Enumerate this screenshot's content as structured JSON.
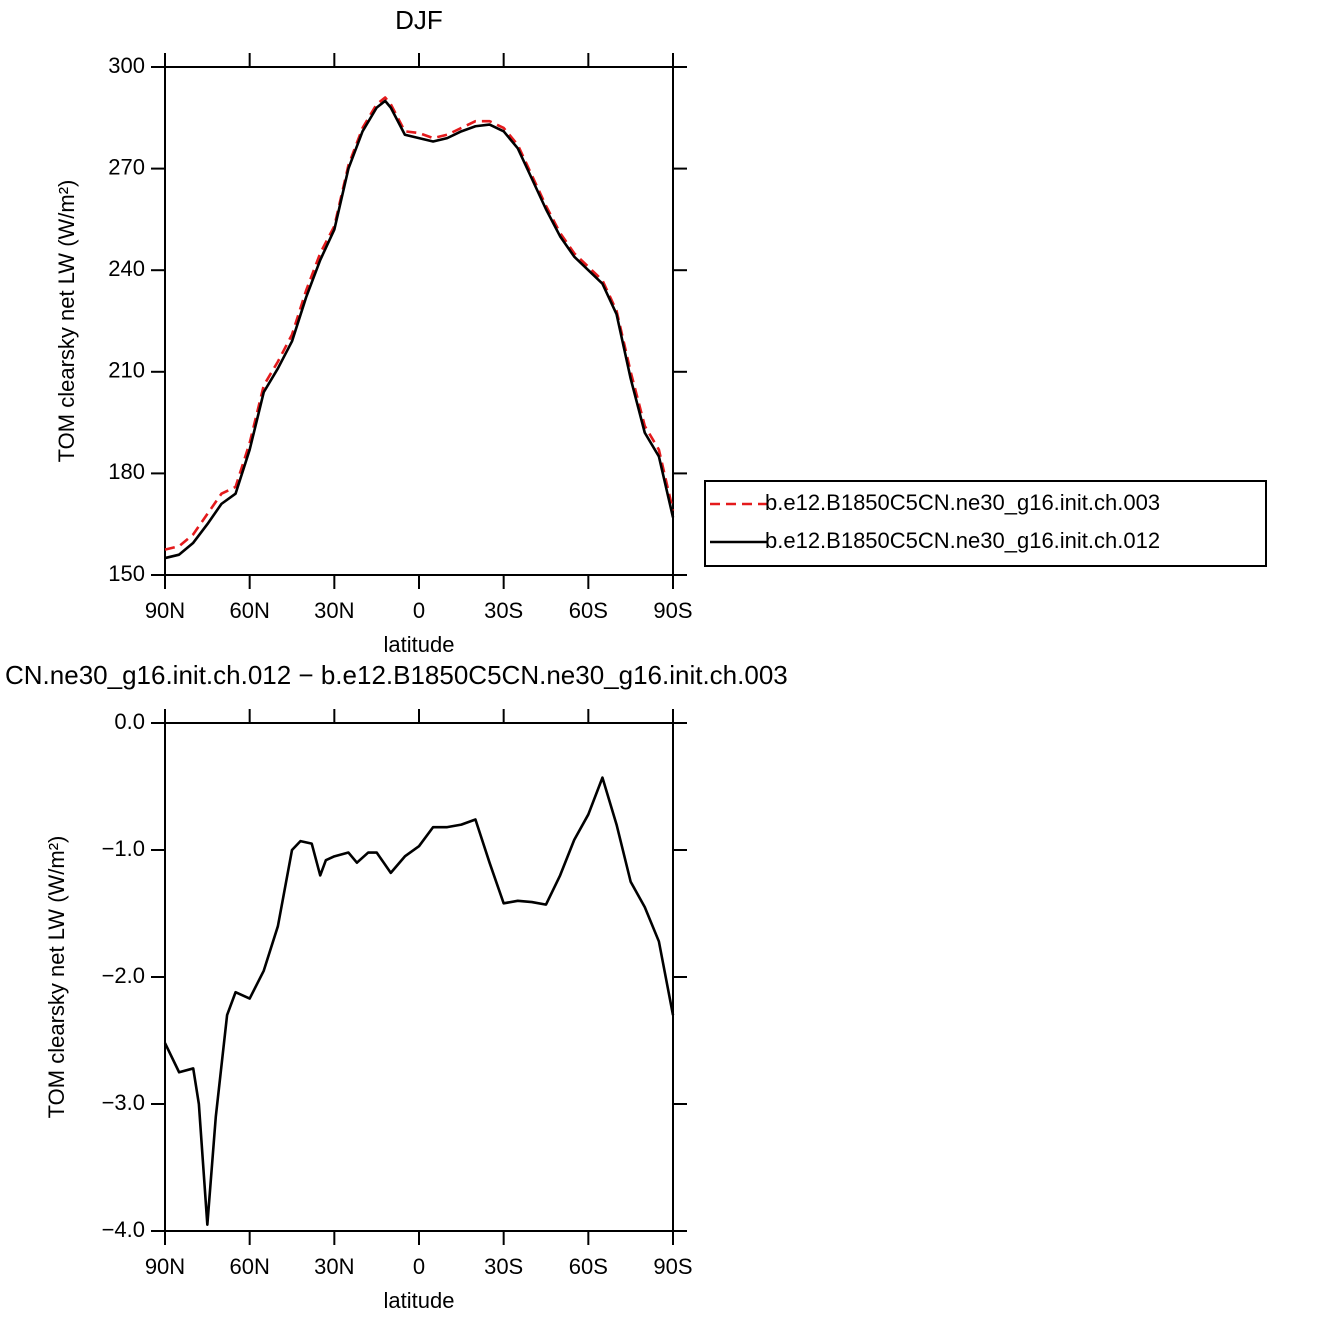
{
  "chart_data": [
    {
      "type": "line",
      "title": "DJF",
      "xlabel": "latitude",
      "ylabel": "TOM clearsky net LW (W/m²)",
      "x": [
        90,
        85,
        80,
        75,
        70,
        65,
        60,
        55,
        50,
        45,
        40,
        35,
        30,
        25,
        20,
        15,
        12,
        10,
        5,
        0,
        -5,
        -10,
        -15,
        -20,
        -25,
        -30,
        -35,
        -40,
        -45,
        -50,
        -55,
        -60,
        -65,
        -70,
        -75,
        -80,
        -85,
        -90
      ],
      "xlim": [
        90,
        -90
      ],
      "xticks": [
        {
          "value": 90,
          "label": "90N"
        },
        {
          "value": 60,
          "label": "60N"
        },
        {
          "value": 30,
          "label": "30N"
        },
        0,
        {
          "value": -30,
          "label": "30S"
        },
        {
          "value": -60,
          "label": "60S"
        },
        {
          "value": -90,
          "label": "90S"
        }
      ],
      "ylim": [
        150,
        300
      ],
      "yticks": [
        150,
        180,
        210,
        240,
        270,
        300
      ],
      "legend": "right",
      "series": [
        {
          "name": "b.e12.B1850C5CN.ne30_g16.init.ch.003",
          "color": "#e41a1c",
          "linestyle": "dashed",
          "values": [
            157.5,
            158.5,
            162,
            168,
            174,
            176,
            189,
            206,
            213,
            221,
            234,
            245,
            253,
            271,
            282,
            289,
            291,
            289,
            281,
            280.5,
            279,
            280,
            282,
            284,
            284,
            282,
            277,
            268,
            259,
            251,
            245,
            241,
            237,
            228,
            210,
            194,
            187,
            169
          ]
        },
        {
          "name": "b.e12.B1850C5CN.ne30_g16.init.ch.012",
          "color": "#000000",
          "linestyle": "solid",
          "values": [
            155,
            156,
            159.5,
            165,
            171,
            174,
            187,
            204,
            211,
            219,
            232,
            243,
            252,
            270,
            281,
            288,
            290,
            288,
            280,
            279,
            278,
            279,
            281,
            282.5,
            283,
            281,
            276,
            267,
            258,
            250,
            244,
            240,
            236,
            227,
            208,
            192,
            185,
            167
          ]
        }
      ]
    },
    {
      "type": "line",
      "title": "CN.ne30_g16.init.ch.012 − b.e12.B1850C5CN.ne30_g16.init.ch.003",
      "xlabel": "latitude",
      "ylabel": "TOM clearsky net LW (W/m²)",
      "x": [
        90,
        85,
        80,
        78,
        75,
        72,
        68,
        65,
        60,
        55,
        50,
        45,
        42,
        38,
        35,
        33,
        30,
        25,
        22,
        18,
        15,
        10,
        5,
        0,
        -5,
        -10,
        -15,
        -20,
        -25,
        -30,
        -35,
        -40,
        -45,
        -50,
        -55,
        -60,
        -65,
        -70,
        -75,
        -80,
        -85,
        -90
      ],
      "xlim": [
        90,
        -90
      ],
      "xticks": [
        {
          "value": 90,
          "label": "90N"
        },
        {
          "value": 60,
          "label": "60N"
        },
        {
          "value": 30,
          "label": "30N"
        },
        0,
        {
          "value": -30,
          "label": "30S"
        },
        {
          "value": -60,
          "label": "60S"
        },
        {
          "value": -90,
          "label": "90S"
        }
      ],
      "ylim": [
        -4,
        0
      ],
      "yticks": [
        {
          "value": -4,
          "label": "−4.0"
        },
        {
          "value": -3,
          "label": "−3.0"
        },
        {
          "value": -2,
          "label": "−2.0"
        },
        {
          "value": -1,
          "label": "−1.0"
        },
        {
          "value": 0,
          "label": "0.0"
        }
      ],
      "series": [
        {
          "color": "#000000",
          "linestyle": "solid",
          "values": [
            -2.52,
            -2.75,
            -2.72,
            -3.0,
            -3.95,
            -3.1,
            -2.3,
            -2.12,
            -2.17,
            -1.95,
            -1.6,
            -1.0,
            -0.93,
            -0.95,
            -1.2,
            -1.08,
            -1.05,
            -1.02,
            -1.1,
            -1.02,
            -1.02,
            -1.18,
            -1.05,
            -0.97,
            -0.82,
            -0.82,
            -0.8,
            -0.76,
            -1.1,
            -1.42,
            -1.4,
            -1.41,
            -1.43,
            -1.2,
            -0.92,
            -0.72,
            -0.43,
            -0.8,
            -1.25,
            -1.45,
            -1.72,
            -2.3
          ]
        }
      ]
    }
  ]
}
